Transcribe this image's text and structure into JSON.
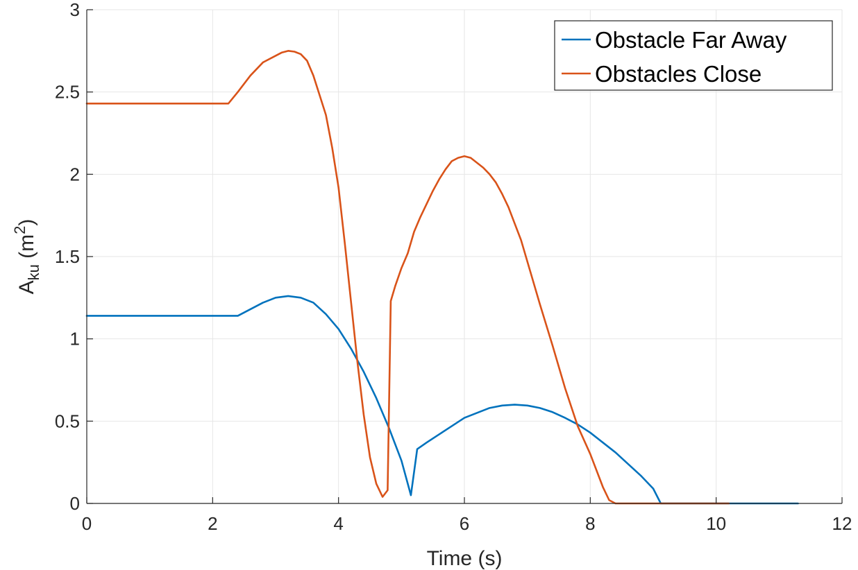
{
  "chart_data": {
    "type": "line",
    "xlabel": "Time (s)",
    "ylabel": {
      "base": "A",
      "subscript": "ku",
      "unit_prefix": " (m",
      "superscript": "2",
      "unit_suffix": ")"
    },
    "xlim": [
      0,
      12
    ],
    "ylim": [
      0,
      3
    ],
    "xticks": [
      0,
      2,
      4,
      6,
      8,
      10,
      12
    ],
    "yticks": [
      0,
      0.5,
      1,
      1.5,
      2,
      2.5,
      3
    ],
    "xtick_labels": [
      "0",
      "2",
      "4",
      "6",
      "8",
      "10",
      "12"
    ],
    "ytick_labels": [
      "0",
      "0.5",
      "1",
      "1.5",
      "2",
      "2.5",
      "3"
    ],
    "grid": true,
    "legend_position": "top-right",
    "series": [
      {
        "name": "Obstacle Far Away",
        "color": "#0072BD",
        "x": [
          0,
          2.4,
          2.6,
          2.8,
          3.0,
          3.2,
          3.4,
          3.6,
          3.8,
          4.0,
          4.2,
          4.4,
          4.6,
          4.8,
          5.0,
          5.15,
          5.25,
          5.4,
          5.6,
          5.8,
          6.0,
          6.2,
          6.4,
          6.6,
          6.8,
          7.0,
          7.2,
          7.4,
          7.6,
          7.8,
          8.0,
          8.2,
          8.4,
          8.6,
          8.8,
          9.0,
          9.12,
          10.0,
          11.3
        ],
        "y": [
          1.14,
          1.14,
          1.18,
          1.22,
          1.25,
          1.26,
          1.25,
          1.22,
          1.15,
          1.06,
          0.94,
          0.8,
          0.64,
          0.46,
          0.26,
          0.05,
          0.33,
          0.37,
          0.42,
          0.47,
          0.52,
          0.55,
          0.58,
          0.595,
          0.6,
          0.595,
          0.58,
          0.555,
          0.52,
          0.48,
          0.43,
          0.37,
          0.31,
          0.24,
          0.17,
          0.09,
          0.0,
          0.0,
          0.0
        ]
      },
      {
        "name": "Obstacles Close",
        "color": "#D95319",
        "x": [
          0,
          2.25,
          2.4,
          2.6,
          2.8,
          3.0,
          3.1,
          3.2,
          3.3,
          3.4,
          3.5,
          3.6,
          3.7,
          3.8,
          3.9,
          4.0,
          4.1,
          4.2,
          4.3,
          4.4,
          4.5,
          4.6,
          4.7,
          4.78,
          4.83,
          4.9,
          5.0,
          5.1,
          5.2,
          5.3,
          5.4,
          5.5,
          5.6,
          5.7,
          5.8,
          5.9,
          6.0,
          6.1,
          6.2,
          6.3,
          6.4,
          6.5,
          6.6,
          6.7,
          6.8,
          6.9,
          7.0,
          7.2,
          7.4,
          7.6,
          7.8,
          8.0,
          8.2,
          8.3,
          8.4,
          9.0,
          10.2
        ],
        "y": [
          2.43,
          2.43,
          2.5,
          2.6,
          2.68,
          2.72,
          2.74,
          2.75,
          2.745,
          2.73,
          2.69,
          2.6,
          2.48,
          2.36,
          2.16,
          1.92,
          1.58,
          1.22,
          0.86,
          0.54,
          0.28,
          0.12,
          0.04,
          0.08,
          1.23,
          1.32,
          1.43,
          1.52,
          1.65,
          1.74,
          1.82,
          1.9,
          1.97,
          2.03,
          2.08,
          2.1,
          2.11,
          2.1,
          2.07,
          2.04,
          2.0,
          1.95,
          1.88,
          1.8,
          1.7,
          1.6,
          1.47,
          1.21,
          0.96,
          0.7,
          0.47,
          0.3,
          0.1,
          0.02,
          0.0,
          0.0,
          0.0
        ]
      }
    ]
  }
}
